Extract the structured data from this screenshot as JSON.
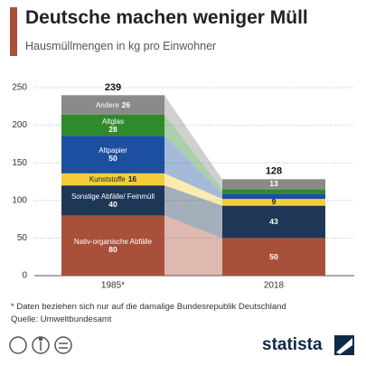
{
  "chart_data": {
    "type": "stacked_bar",
    "title": "Deutsche machen weniger Müll",
    "subtitle": "Hausmüllmengen in kg pro Einwohner",
    "categories": [
      "1985*",
      "2018"
    ],
    "series": [
      {
        "name": "Nativ-organische Abfälle",
        "color": "#a9503a",
        "values": [
          80,
          50
        ]
      },
      {
        "name": "Sonstige Abfälle/ Feinmüll",
        "color": "#1e3756",
        "values": [
          40,
          43
        ]
      },
      {
        "name": "Kunststoffe",
        "color": "#f2cf3a",
        "values": [
          16,
          9
        ]
      },
      {
        "name": "Altpapier",
        "color": "#1d4fa0",
        "values": [
          50,
          7
        ]
      },
      {
        "name": "Altglas",
        "color": "#2f8a2c",
        "values": [
          28,
          6
        ]
      },
      {
        "name": "Andere",
        "color": "#8a8a8a",
        "values": [
          26,
          13
        ]
      }
    ],
    "totals": [
      239,
      128
    ],
    "ylim": [
      0,
      250
    ],
    "yticks": [
      0,
      50,
      100,
      150,
      200,
      250
    ],
    "grid": true
  },
  "footnote": "* Daten beziehen sich nur auf die damalige Bundesrepublik Deutschland",
  "source": "Quelle: Umweltbundesamt",
  "brand": "statista"
}
